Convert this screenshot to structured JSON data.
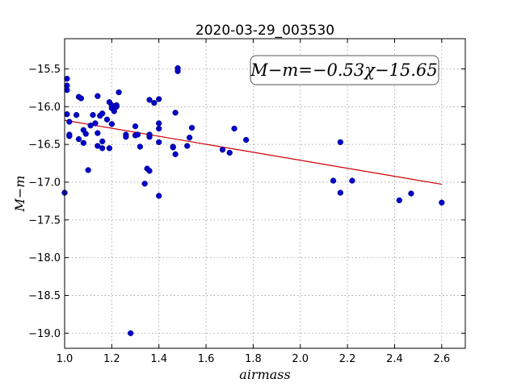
{
  "chart_data": {
    "type": "scatter",
    "title": "2020-03-29_003530",
    "xlabel": "airmass",
    "ylabel": "M−m",
    "xlim": [
      1.0,
      2.7
    ],
    "ylim": [
      -19.2,
      -15.1
    ],
    "y_inverted": true,
    "grid": true,
    "xticks": [
      1.0,
      1.2,
      1.4,
      1.6,
      1.8,
      2.0,
      2.2,
      2.4,
      2.6
    ],
    "xtick_labels": [
      "1.0",
      "1.2",
      "1.4",
      "1.6",
      "1.8",
      "2.0",
      "2.2",
      "2.4",
      "2.6"
    ],
    "yticks": [
      -15.5,
      -16.0,
      -16.5,
      -17.0,
      -17.5,
      -18.0,
      -18.5,
      -19.0
    ],
    "ytick_labels": [
      "−15.5",
      "−16.0",
      "−16.5",
      "−17.0",
      "−17.5",
      "−18.0",
      "−18.5",
      "−19.0"
    ],
    "annotation": "M−m=−0.53χ−15.65",
    "fit": {
      "slope": -0.53,
      "intercept": -15.65,
      "x_range": [
        1.0,
        2.6
      ],
      "color": "#cc0000"
    },
    "point_color": "#0000cc",
    "points": [
      [
        1.0,
        -17.14
      ],
      [
        1.01,
        -15.63
      ],
      [
        1.01,
        -15.72
      ],
      [
        1.01,
        -15.78
      ],
      [
        1.01,
        -16.1
      ],
      [
        1.02,
        -16.37
      ],
      [
        1.02,
        -16.39
      ],
      [
        1.02,
        -16.2
      ],
      [
        1.05,
        -16.11
      ],
      [
        1.06,
        -16.43
      ],
      [
        1.06,
        -15.87
      ],
      [
        1.07,
        -15.89
      ],
      [
        1.08,
        -16.31
      ],
      [
        1.08,
        -16.48
      ],
      [
        1.09,
        -16.36
      ],
      [
        1.1,
        -16.84
      ],
      [
        1.11,
        -16.25
      ],
      [
        1.12,
        -16.11
      ],
      [
        1.13,
        -16.22
      ],
      [
        1.14,
        -15.86
      ],
      [
        1.14,
        -16.35
      ],
      [
        1.14,
        -16.52
      ],
      [
        1.15,
        -16.12
      ],
      [
        1.16,
        -16.09
      ],
      [
        1.16,
        -16.46
      ],
      [
        1.16,
        -16.55
      ],
      [
        1.18,
        -16.17
      ],
      [
        1.19,
        -16.55
      ],
      [
        1.19,
        -15.94
      ],
      [
        1.2,
        -15.98
      ],
      [
        1.2,
        -16.02
      ],
      [
        1.2,
        -16.23
      ],
      [
        1.21,
        -16.06
      ],
      [
        1.22,
        -16.0
      ],
      [
        1.22,
        -15.98
      ],
      [
        1.23,
        -15.81
      ],
      [
        1.26,
        -16.37
      ],
      [
        1.26,
        -16.4
      ],
      [
        1.28,
        -19.0
      ],
      [
        1.3,
        -16.38
      ],
      [
        1.3,
        -16.26
      ],
      [
        1.31,
        -16.37
      ],
      [
        1.32,
        -16.53
      ],
      [
        1.34,
        -17.02
      ],
      [
        1.35,
        -16.82
      ],
      [
        1.36,
        -16.85
      ],
      [
        1.36,
        -16.37
      ],
      [
        1.36,
        -16.4
      ],
      [
        1.36,
        -15.91
      ],
      [
        1.38,
        -15.95
      ],
      [
        1.4,
        -15.9
      ],
      [
        1.4,
        -16.22
      ],
      [
        1.4,
        -16.29
      ],
      [
        1.4,
        -16.47
      ],
      [
        1.4,
        -17.18
      ],
      [
        1.46,
        -16.53
      ],
      [
        1.46,
        -16.54
      ],
      [
        1.47,
        -16.08
      ],
      [
        1.47,
        -16.63
      ],
      [
        1.48,
        -15.49
      ],
      [
        1.48,
        -15.53
      ],
      [
        1.52,
        -16.52
      ],
      [
        1.53,
        -16.41
      ],
      [
        1.54,
        -16.28
      ],
      [
        1.67,
        -16.57
      ],
      [
        1.7,
        -16.61
      ],
      [
        1.72,
        -16.29
      ],
      [
        1.77,
        -16.44
      ],
      [
        2.14,
        -16.98
      ],
      [
        2.17,
        -16.47
      ],
      [
        2.17,
        -17.14
      ],
      [
        2.22,
        -16.98
      ],
      [
        2.42,
        -17.24
      ],
      [
        2.47,
        -17.15
      ],
      [
        2.6,
        -17.27
      ]
    ]
  }
}
